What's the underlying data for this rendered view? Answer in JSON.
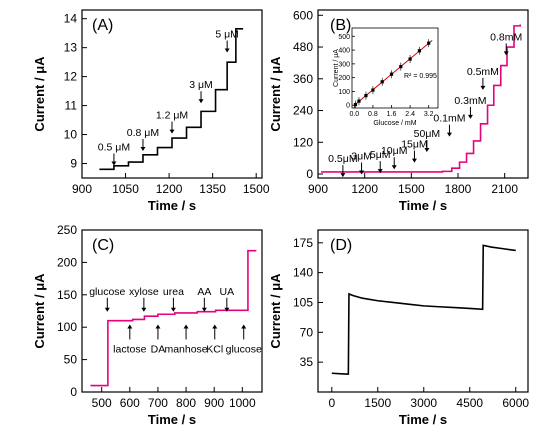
{
  "chart_data": [
    {
      "panel": "(A)",
      "type": "line",
      "ylabel": "Current / μA",
      "xlabel": "Time / s",
      "xlim": [
        900,
        1520
      ],
      "ylim": [
        8.5,
        14.3
      ],
      "xticks": [
        "900",
        "1050",
        "1200",
        "1350",
        "1500"
      ],
      "yticks": [
        "9",
        "10",
        "11",
        "12",
        "13",
        "14"
      ],
      "color": "#000000",
      "steps": [
        {
          "x": 960,
          "y": 8.8
        },
        {
          "x": 1010,
          "y": 8.92
        },
        {
          "x": 1060,
          "y": 9.05
        },
        {
          "x": 1110,
          "y": 9.3
        },
        {
          "x": 1160,
          "y": 9.55
        },
        {
          "x": 1210,
          "y": 9.88
        },
        {
          "x": 1260,
          "y": 10.25
        },
        {
          "x": 1310,
          "y": 10.8
        },
        {
          "x": 1360,
          "y": 11.55
        },
        {
          "x": 1400,
          "y": 12.5
        },
        {
          "x": 1430,
          "y": 13.65
        },
        {
          "x": 1455,
          "y": 13.65
        }
      ],
      "annotations": [
        {
          "text": "0.5 μM",
          "x": 1010,
          "y": 9.45
        },
        {
          "text": "0.8 μM",
          "x": 1110,
          "y": 9.95
        },
        {
          "text": "1.2 μM",
          "x": 1210,
          "y": 10.55
        },
        {
          "text": "3 μM",
          "x": 1310,
          "y": 11.6
        },
        {
          "text": "5 μM",
          "x": 1400,
          "y": 13.35
        }
      ]
    },
    {
      "panel": "(B)",
      "type": "line",
      "ylabel": "Current / μA",
      "xlabel": "Time / s",
      "xlim": [
        900,
        2250
      ],
      "ylim": [
        -15,
        620
      ],
      "xticks": [
        "900",
        "1200",
        "1500",
        "1800",
        "2100"
      ],
      "yticks": [
        "0",
        "120",
        "240",
        "360",
        "480",
        "600"
      ],
      "color": "#e8007d",
      "steps": [
        {
          "x": 920,
          "y": 8
        },
        {
          "x": 1700,
          "y": 10
        },
        {
          "x": 1760,
          "y": 22
        },
        {
          "x": 1810,
          "y": 45
        },
        {
          "x": 1855,
          "y": 78
        },
        {
          "x": 1900,
          "y": 125
        },
        {
          "x": 1945,
          "y": 190
        },
        {
          "x": 1990,
          "y": 260
        },
        {
          "x": 2030,
          "y": 335
        },
        {
          "x": 2075,
          "y": 410
        },
        {
          "x": 2115,
          "y": 480
        },
        {
          "x": 2160,
          "y": 560
        },
        {
          "x": 2200,
          "y": 565
        }
      ],
      "annotations": [
        {
          "text": "0.5μM",
          "x": 1060,
          "y": 45
        },
        {
          "text": "3μM",
          "x": 1180,
          "y": 55
        },
        {
          "text": "5μM",
          "x": 1300,
          "y": 60
        },
        {
          "text": "10μM",
          "x": 1390,
          "y": 75
        },
        {
          "text": "15μM",
          "x": 1520,
          "y": 100
        },
        {
          "text": "50μM",
          "x": 1600,
          "y": 140
        },
        {
          "text": "0.1mM",
          "x": 1745,
          "y": 198
        },
        {
          "text": "0.3mM",
          "x": 1880,
          "y": 265
        },
        {
          "text": "0.5mM",
          "x": 1960,
          "y": 375
        },
        {
          "text": "0.8mM",
          "x": 2110,
          "y": 505
        }
      ],
      "inset": {
        "xlabel": "Glucose / mM",
        "ylabel": "Current / μA",
        "xticks": [
          "0.0",
          "0.8",
          "1.6",
          "2.4",
          "3.2"
        ],
        "yticks": [
          "0",
          "100",
          "200",
          "300",
          "400",
          "500"
        ],
        "r2_text": "R² = 0.995",
        "xlim": [
          -0.1,
          3.6
        ],
        "ylim": [
          -20,
          560
        ],
        "points": [
          {
            "x": 0.05,
            "y": 5
          },
          {
            "x": 0.2,
            "y": 30
          },
          {
            "x": 0.5,
            "y": 70
          },
          {
            "x": 0.8,
            "y": 110
          },
          {
            "x": 1.2,
            "y": 170
          },
          {
            "x": 1.6,
            "y": 225
          },
          {
            "x": 2.0,
            "y": 280
          },
          {
            "x": 2.4,
            "y": 335
          },
          {
            "x": 2.8,
            "y": 395
          },
          {
            "x": 3.2,
            "y": 450
          }
        ],
        "fit": [
          [
            0,
            0
          ],
          [
            3.35,
            470
          ]
        ]
      }
    },
    {
      "panel": "(C)",
      "type": "line",
      "ylabel": "Current / μA",
      "xlabel": "Time / s",
      "xlim": [
        430,
        1070
      ],
      "ylim": [
        0,
        250
      ],
      "xticks": [
        "500",
        "600",
        "700",
        "800",
        "900",
        "1000"
      ],
      "yticks": [
        "0",
        "50",
        "100",
        "150",
        "200",
        "250"
      ],
      "color": "#e8007d",
      "steps": [
        {
          "x": 460,
          "y": 10
        },
        {
          "x": 518,
          "y": 10
        },
        {
          "x": 522,
          "y": 110
        },
        {
          "x": 610,
          "y": 112
        },
        {
          "x": 652,
          "y": 117
        },
        {
          "x": 700,
          "y": 120
        },
        {
          "x": 760,
          "y": 122
        },
        {
          "x": 840,
          "y": 124
        },
        {
          "x": 905,
          "y": 126
        },
        {
          "x": 1010,
          "y": 126
        },
        {
          "x": 1020,
          "y": 218
        },
        {
          "x": 1050,
          "y": 218
        }
      ],
      "labels_above": [
        {
          "text": "glucose",
          "x": 520,
          "y": 150
        },
        {
          "text": "xylose",
          "x": 650,
          "y": 150
        },
        {
          "text": "urea",
          "x": 755,
          "y": 150
        },
        {
          "text": "AA",
          "x": 865,
          "y": 150
        },
        {
          "text": "UA",
          "x": 945,
          "y": 150
        }
      ],
      "labels_below": [
        {
          "text": "lactose",
          "x": 600,
          "y": 78
        },
        {
          "text": "DA",
          "x": 700,
          "y": 78
        },
        {
          "text": "manhose",
          "x": 800,
          "y": 78
        },
        {
          "text": "KCl",
          "x": 902,
          "y": 78
        },
        {
          "text": "glucose",
          "x": 1005,
          "y": 78
        }
      ]
    },
    {
      "panel": "(D)",
      "type": "line",
      "ylabel": "Current / μA",
      "xlabel": "Time / s",
      "xlim": [
        -450,
        6400
      ],
      "ylim": [
        0,
        190
      ],
      "xticks": [
        "0",
        "1500",
        "3000",
        "4500",
        "6000"
      ],
      "yticks": [
        "35",
        "70",
        "105",
        "140",
        "175"
      ],
      "color": "#000000",
      "points": [
        [
          0,
          22
        ],
        [
          450,
          21
        ],
        [
          540,
          21
        ],
        [
          560,
          115
        ],
        [
          700,
          113
        ],
        [
          1000,
          110
        ],
        [
          1500,
          107
        ],
        [
          2000,
          105
        ],
        [
          2500,
          103
        ],
        [
          3000,
          101
        ],
        [
          3500,
          100
        ],
        [
          4000,
          99
        ],
        [
          4500,
          98
        ],
        [
          4920,
          97
        ],
        [
          4940,
          172
        ],
        [
          5200,
          170
        ],
        [
          5600,
          168
        ],
        [
          6000,
          166
        ]
      ]
    }
  ]
}
